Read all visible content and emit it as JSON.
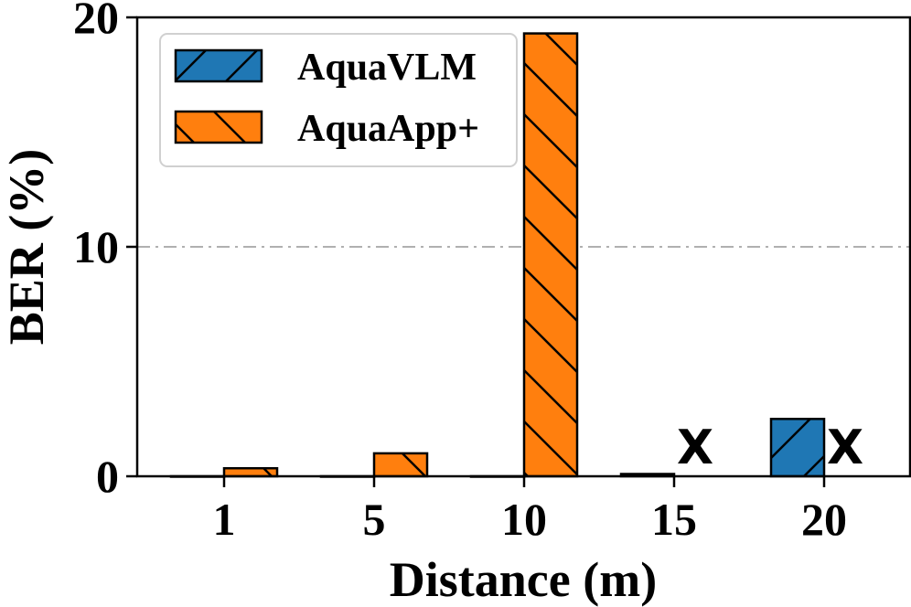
{
  "chart_data": {
    "type": "bar",
    "categories": [
      "1",
      "5",
      "10",
      "15",
      "20"
    ],
    "series": [
      {
        "name": "AquaVLM",
        "values": [
          0,
          0,
          0,
          0.1,
          2.5
        ],
        "color": "#1f77b4",
        "hatch": "forward-slash"
      },
      {
        "name": "AquaApp+",
        "values": [
          0.35,
          1.0,
          19.3,
          null,
          null
        ],
        "color": "#ff7f0e",
        "hatch": "back-slash"
      }
    ],
    "na_marker": "X",
    "xlabel": "Distance (m)",
    "ylabel": "BER (%)",
    "ylim": [
      0,
      20
    ],
    "yticks": [
      0,
      10,
      20
    ],
    "grid": "horizontal dash-dot",
    "legend_position": "top-left"
  }
}
